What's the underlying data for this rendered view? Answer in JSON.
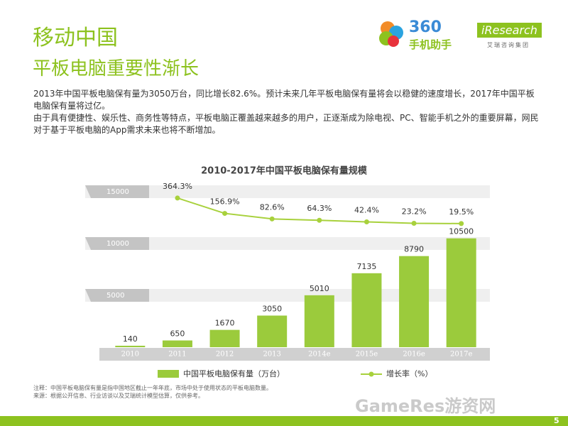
{
  "header": {
    "title": "移动中国",
    "subtitle": "平板电脑重要性渐长"
  },
  "logos": {
    "brand": "360",
    "brand_sub": "手机助手",
    "research": "iResearch",
    "research_sub": "艾瑞咨询集团"
  },
  "paragraphs": [
    "2013年中国平板电脑保有量为3050万台，同比增长82.6%。预计未来几年平板电脑保有量将会以稳健的速度增长，2017年中国平板电脑保有量将过亿。",
    "由于具有便捷性、娱乐性、商务性等特点，平板电脑正覆盖越来越多的用户，正逐渐成为除电视、PC、智能手机之外的重要屏幕，网民对于基于平板电脑的App需求未来也将不断增加。"
  ],
  "chart_data": {
    "type": "bar",
    "title": "2010-2017年中国平板电脑保有量规模",
    "categories": [
      "2010",
      "2011",
      "2012",
      "2013",
      "2014e",
      "2015e",
      "2016e",
      "2017e"
    ],
    "series": [
      {
        "name": "中国平板电脑保有量（万台）",
        "color": "#9bcb3c",
        "values": [
          140,
          650,
          1670,
          3050,
          5010,
          7135,
          8790,
          10500
        ]
      },
      {
        "name": "增长率（%）",
        "type": "line",
        "axis": "y2",
        "color": "#a8d13c",
        "values": [
          null,
          364.3,
          156.9,
          82.6,
          64.3,
          42.4,
          23.2,
          19.5
        ],
        "value_labels": [
          null,
          "364.3%",
          "156.9%",
          "82.6%",
          "64.3%",
          "42.4%",
          "23.2%",
          "19.5%"
        ]
      }
    ],
    "ylim": [
      0,
      15000
    ],
    "yticks": [
      5000,
      10000,
      15000
    ],
    "y2lim": [
      -1650,
      450
    ]
  },
  "notes": [
    "注释：中国平板电脑保有量是指中国地区截止一年年底，市场中处于使用状态的平板电脑数量。",
    "来源：根据公开信息、行业访谈以及艾瑞统计模型估算，仅供参考。"
  ],
  "watermark": "GameRes游资网",
  "page_number": "5"
}
